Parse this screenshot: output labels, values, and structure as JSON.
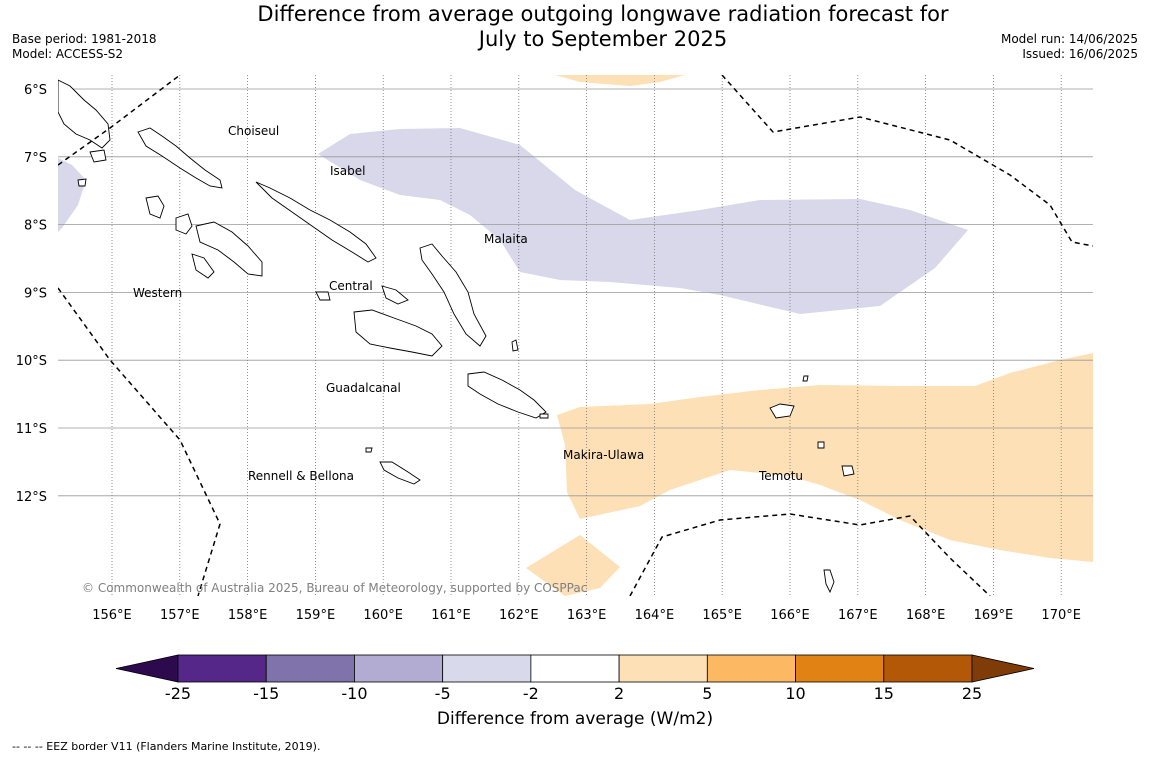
{
  "header": {
    "title_line1": "Difference from average outgoing longwave radiation forecast for",
    "title_line2": "July to September 2025",
    "base_period": "Base period: 1981-2018",
    "model": "Model: ACCESS-S2",
    "model_run": "Model run: 14/06/2025",
    "issued": "Issued: 16/06/2025"
  },
  "map": {
    "lat_labels": [
      "6°S",
      "7°S",
      "8°S",
      "9°S",
      "10°S",
      "11°S",
      "12°S"
    ],
    "lon_labels": [
      "156°E",
      "157°E",
      "158°E",
      "159°E",
      "160°E",
      "161°E",
      "162°E",
      "163°E",
      "164°E",
      "165°E",
      "166°E",
      "167°E",
      "168°E",
      "169°E",
      "170°E"
    ],
    "province_labels": {
      "choiseul": "Choiseul",
      "isabel": "Isabel",
      "malaita": "Malaita",
      "western": "Western",
      "central": "Central",
      "guadalcanal": "Guadalcanal",
      "makira": "Makira-Ulawa",
      "temotu": "Temotu",
      "rennell": "Rennell & Bellona"
    },
    "copyright": "© Commonwealth of Australia 2025, Bureau of Meteorology, supported by COSPPac",
    "colors": {
      "positive_2_5": "#fde0b6",
      "negative_2_5": "#d8d8ea",
      "gridline": "#999999",
      "eez": "#000000"
    }
  },
  "colorbar": {
    "title": "Difference from average (W/m2)",
    "ticks": [
      "-25",
      "-15",
      "-10",
      "-5",
      "-2",
      "2",
      "5",
      "10",
      "15",
      "25"
    ],
    "colors": [
      "#2d0a4e",
      "#542788",
      "#8073ac",
      "#b2abd2",
      "#d8daeb",
      "#ffffff",
      "#fee0b6",
      "#fdb863",
      "#e08214",
      "#b35806",
      "#7f3b08"
    ]
  },
  "footer": {
    "eez_note": "--  --  -- EEZ border V11 (Flanders Marine Institute, 2019)."
  }
}
